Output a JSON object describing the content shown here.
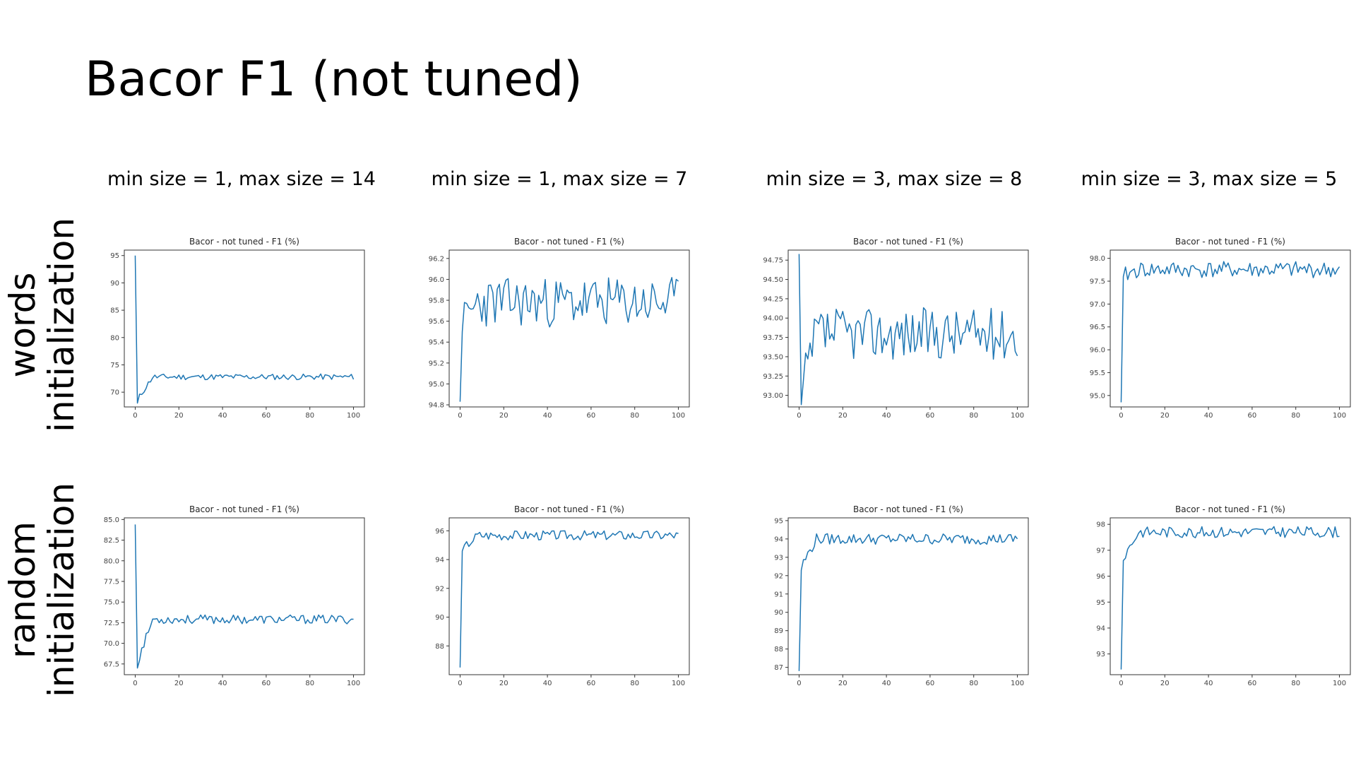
{
  "slide": {
    "title": "Bacor F1 (not tuned)",
    "columns": [
      "min size = 1, max size = 14",
      "min size = 1, max size = 7",
      "min size = 3, max size = 8",
      "min size = 3, max size = 5"
    ],
    "rows": [
      {
        "line1": "words",
        "line2": "initialization"
      },
      {
        "line1": "random",
        "line2": "initialization"
      }
    ]
  },
  "colors": {
    "series": "#1f77b4",
    "frame": "#333333"
  },
  "chart_data": [
    {
      "type": "line",
      "title": "Bacor - not tuned - F1 (%)",
      "row": "words initialization",
      "column": "min size = 1, max size = 14",
      "xlim": [
        -5,
        105
      ],
      "ylim": [
        67.3,
        96.0
      ],
      "xticks": [
        0,
        20,
        40,
        60,
        80,
        100
      ],
      "yticks": [
        70,
        75,
        80,
        85,
        90,
        95
      ],
      "ytick_labels": [
        "70",
        "75",
        "80",
        "85",
        "90",
        "95"
      ],
      "start": 95.0,
      "min": 68.0,
      "mean": 72.8,
      "spread": 0.45,
      "seed": 11
    },
    {
      "type": "line",
      "title": "Bacor - not tuned - F1 (%)",
      "row": "words initialization",
      "column": "min size = 1, max size = 7",
      "xlim": [
        -5,
        105
      ],
      "ylim": [
        94.78,
        96.28
      ],
      "xticks": [
        0,
        20,
        40,
        60,
        80,
        100
      ],
      "yticks": [
        94.8,
        95.0,
        95.2,
        95.4,
        95.6,
        95.8,
        96.0,
        96.2
      ],
      "ytick_labels": [
        "94.8",
        "95.0",
        "95.2",
        "95.4",
        "95.6",
        "95.8",
        "96.0",
        "96.2"
      ],
      "start": 94.83,
      "min": 95.5,
      "mean": 95.78,
      "spread": 0.2,
      "seed": 23
    },
    {
      "type": "line",
      "title": "Bacor - not tuned - F1 (%)",
      "row": "words initialization",
      "column": "min size = 3, max size = 8",
      "xlim": [
        -5,
        105
      ],
      "ylim": [
        92.85,
        94.88
      ],
      "xticks": [
        0,
        20,
        40,
        60,
        80,
        100
      ],
      "yticks": [
        93.0,
        93.25,
        93.5,
        93.75,
        94.0,
        94.25,
        94.5,
        94.75
      ],
      "ytick_labels": [
        "93.00",
        "93.25",
        "93.50",
        "93.75",
        "94.00",
        "94.25",
        "94.50",
        "94.75"
      ],
      "start": 94.83,
      "min": 92.88,
      "mean": 93.8,
      "spread": 0.28,
      "seed": 37
    },
    {
      "type": "line",
      "title": "Bacor - not tuned - F1 (%)",
      "row": "words initialization",
      "column": "min size = 3, max size = 5",
      "xlim": [
        -5,
        105
      ],
      "ylim": [
        94.75,
        98.18
      ],
      "xticks": [
        0,
        20,
        40,
        60,
        80,
        100
      ],
      "yticks": [
        95.0,
        95.5,
        96.0,
        96.5,
        97.0,
        97.5,
        98.0
      ],
      "ytick_labels": [
        "95.0",
        "95.5",
        "96.0",
        "96.5",
        "97.0",
        "97.5",
        "98.0"
      ],
      "start": 94.85,
      "min": 97.6,
      "mean": 97.75,
      "spread": 0.15,
      "seed": 41
    },
    {
      "type": "line",
      "title": "Bacor - not tuned - F1 (%)",
      "row": "random initialization",
      "column": "min size = 1, max size = 14",
      "xlim": [
        -5,
        105
      ],
      "ylim": [
        66.2,
        85.2
      ],
      "xticks": [
        0,
        20,
        40,
        60,
        80,
        100
      ],
      "yticks": [
        67.5,
        70.0,
        72.5,
        75.0,
        77.5,
        80.0,
        82.5,
        85.0
      ],
      "ytick_labels": [
        "67.5",
        "70.0",
        "72.5",
        "75.0",
        "77.5",
        "80.0",
        "82.5",
        "85.0"
      ],
      "start": 84.4,
      "min": 67.0,
      "mean": 72.9,
      "spread": 0.45,
      "seed": 53
    },
    {
      "type": "line",
      "title": "Bacor - not tuned - F1 (%)",
      "row": "random initialization",
      "column": "min size = 1, max size = 7",
      "xlim": [
        -5,
        105
      ],
      "ylim": [
        86.0,
        96.9
      ],
      "xticks": [
        0,
        20,
        40,
        60,
        80,
        100
      ],
      "yticks": [
        88,
        90,
        92,
        94,
        96
      ],
      "ytick_labels": [
        "88",
        "90",
        "92",
        "94",
        "96"
      ],
      "start": 86.5,
      "min": 94.6,
      "mean": 95.7,
      "spread": 0.28,
      "seed": 67
    },
    {
      "type": "line",
      "title": "Bacor - not tuned - F1 (%)",
      "row": "random initialization",
      "column": "min size = 3, max size = 8",
      "xlim": [
        -5,
        105
      ],
      "ylim": [
        86.6,
        95.15
      ],
      "xticks": [
        0,
        20,
        40,
        60,
        80,
        100
      ],
      "yticks": [
        87,
        88,
        89,
        90,
        91,
        92,
        93,
        94,
        95
      ],
      "ytick_labels": [
        "87",
        "88",
        "89",
        "90",
        "91",
        "92",
        "93",
        "94",
        "95"
      ],
      "start": 86.8,
      "min": 92.3,
      "mean": 94.0,
      "spread": 0.25,
      "seed": 79
    },
    {
      "type": "line",
      "title": "Bacor - not tuned - F1 (%)",
      "row": "random initialization",
      "column": "min size = 3, max size = 5",
      "xlim": [
        -5,
        105
      ],
      "ylim": [
        92.2,
        98.25
      ],
      "xticks": [
        0,
        20,
        40,
        60,
        80,
        100
      ],
      "yticks": [
        93,
        94,
        95,
        96,
        97,
        98
      ],
      "ytick_labels": [
        "93",
        "94",
        "95",
        "96",
        "97",
        "98"
      ],
      "start": 92.4,
      "min": 96.6,
      "mean": 97.7,
      "spread": 0.18,
      "seed": 83
    }
  ]
}
